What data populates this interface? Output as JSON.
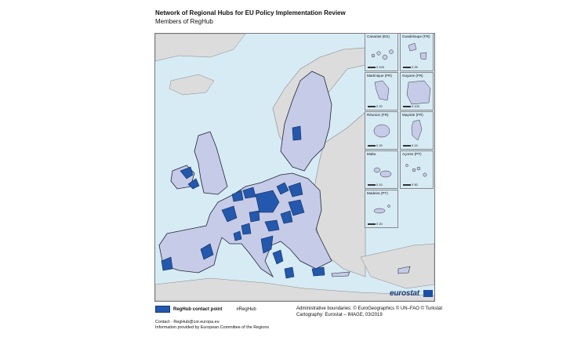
{
  "title": "Network of Regional Hubs for EU Policy Implementation Review",
  "subtitle": "Members of RegHub",
  "colors": {
    "sea": "#d7ebf5",
    "eu_member": "#c6cbe8",
    "reghub": "#2358ad",
    "non_eu": "#dcdcdc",
    "border": "#1f2633"
  },
  "insets": [
    {
      "name": "Canarias (ES)",
      "scale": "0   100"
    },
    {
      "name": "Guadeloupe (FR)",
      "scale": "0   25"
    },
    {
      "name": "Martinique (FR)",
      "scale": "0   20"
    },
    {
      "name": "Guyane (FR)",
      "scale": "0   100"
    },
    {
      "name": "Réunion (FR)",
      "scale": "0   20"
    },
    {
      "name": "Mayotte (FR)",
      "scale": "0   15"
    },
    {
      "name": "Malta",
      "scale": "0   10"
    },
    {
      "name": "Açores (PT)",
      "scale": "0   50"
    },
    {
      "name": "Madeira (PT)",
      "scale": "0   20"
    }
  ],
  "brand": "eurostat",
  "legend": {
    "reghub_label": "RegHub contact point",
    "hashtag": "#RegHub"
  },
  "source": {
    "boundaries": "Administrative boundaries: © EuroGeographics © UN–FAO © Turkstat",
    "cartography": "Cartography: Eurostat – IMAGE, 03/2019"
  },
  "contact": {
    "email_line": "Contact - RegHub@cor.europa.eu",
    "info_line": "Information provided by European Committee of the Regions"
  }
}
